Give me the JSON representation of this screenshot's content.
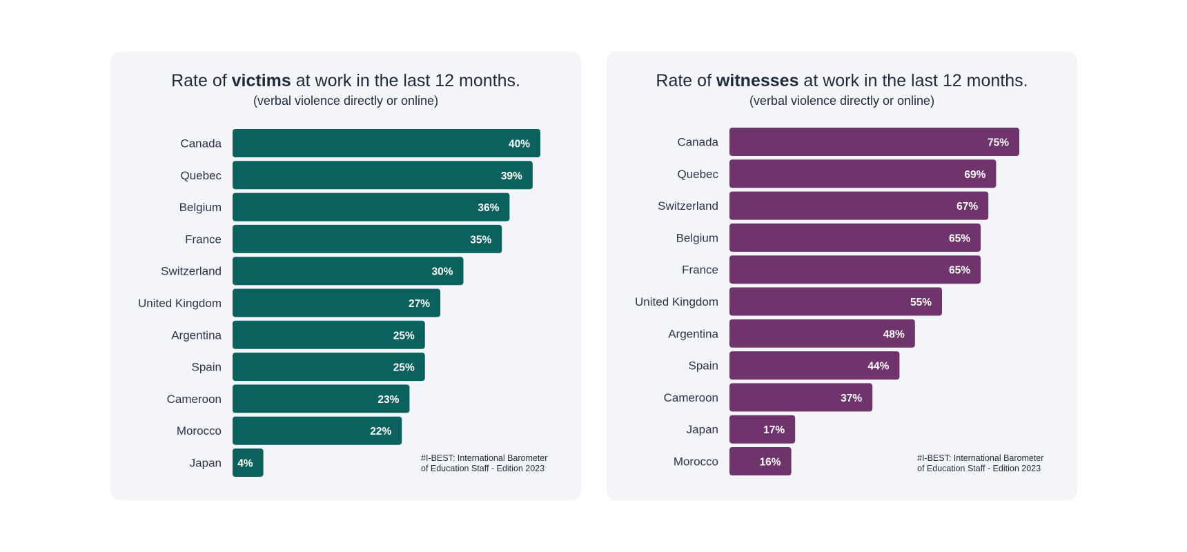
{
  "chart_data": [
    {
      "type": "bar",
      "orientation": "horizontal",
      "title_prefix": "Rate of ",
      "title_bold": "victims",
      "title_suffix": " at work in the last 12 months.",
      "subtitle": "(verbal violence directly or online)",
      "categories": [
        "Canada",
        "Quebec",
        "Belgium",
        "France",
        "Switzerland",
        "United Kingdom",
        "Argentina",
        "Spain",
        "Cameroon",
        "Morocco",
        "Japan"
      ],
      "values": [
        40,
        39,
        36,
        35,
        30,
        27,
        25,
        25,
        23,
        22,
        4
      ],
      "value_labels": [
        "40%",
        "39%",
        "36%",
        "35%",
        "30%",
        "27%",
        "25%",
        "25%",
        "23%",
        "22%",
        "4%"
      ],
      "unit": "%",
      "color": "#0b615d",
      "grid": false,
      "source": "#I-BEST: International Barometer\nof Education Staff - Edition 2023"
    },
    {
      "type": "bar",
      "orientation": "horizontal",
      "title_prefix": "Rate of ",
      "title_bold": "witnesses",
      "title_suffix": " at work in the last 12 months.",
      "subtitle": "(verbal violence directly or online)",
      "categories": [
        "Canada",
        "Quebec",
        "Switzerland",
        "Belgium",
        "France",
        "United Kingdom",
        "Argentina",
        "Spain",
        "Cameroon",
        "Japan",
        "Morocco"
      ],
      "values": [
        75,
        69,
        67,
        65,
        65,
        55,
        48,
        44,
        37,
        17,
        16
      ],
      "value_labels": [
        "75%",
        "69%",
        "67%",
        "65%",
        "65%",
        "55%",
        "48%",
        "44%",
        "37%",
        "17%",
        "16%"
      ],
      "unit": "%",
      "color": "#6e346b",
      "grid": false,
      "source": "#I-BEST: International Barometer\nof Education Staff - Edition 2023"
    }
  ]
}
